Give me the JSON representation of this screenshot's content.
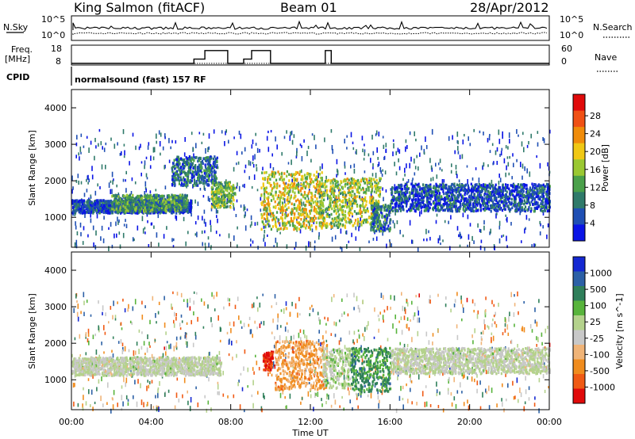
{
  "header": {
    "station": "King Salmon (fitACF)",
    "beam": "Beam 01",
    "date": "28/Apr/2012"
  },
  "noise_panel": {
    "left_label": "N.Sky",
    "right_label": "N.Search",
    "left_ticks": [
      "10^5",
      "10^0"
    ],
    "right_ticks": [
      "10^5",
      "10^0"
    ]
  },
  "freq_panel": {
    "left_label_line1": "Freq.",
    "left_label_line2": "[MHz]",
    "right_label": "Nave",
    "left_ticks": [
      "18",
      "8"
    ],
    "right_ticks": [
      "60",
      "0"
    ],
    "freq_steps": [
      {
        "start": 0.0,
        "end": 6.15,
        "level": 8
      },
      {
        "start": 6.15,
        "end": 6.7,
        "level": 11
      },
      {
        "start": 6.7,
        "end": 7.85,
        "level": 17
      },
      {
        "start": 7.85,
        "end": 8.65,
        "level": 8
      },
      {
        "start": 8.65,
        "end": 9.05,
        "level": 11
      },
      {
        "start": 9.05,
        "end": 10.0,
        "level": 17
      },
      {
        "start": 10.0,
        "end": 12.75,
        "level": 8
      },
      {
        "start": 12.75,
        "end": 13.05,
        "level": 17
      },
      {
        "start": 13.05,
        "end": 24.0,
        "level": 8
      }
    ]
  },
  "cpid": {
    "label": "CPID",
    "text": "normalsound (fast) 157 RF"
  },
  "chart_data": [
    {
      "type": "heatmap",
      "title": "",
      "quantity": "Power",
      "xlabel": "",
      "ylabel": "Slant Range [km]",
      "xlim": [
        0,
        24
      ],
      "ylim": [
        180,
        4500
      ],
      "yticks": [
        1000,
        2000,
        3000,
        4000
      ],
      "colorbar_label": "Power [dB]",
      "colorbar_ticks": [
        "4",
        "8",
        "12",
        "16",
        "20",
        "24",
        "28"
      ],
      "colorbar_range": [
        0,
        30
      ],
      "colorbar_colors": [
        "#0a14e6",
        "#1f4fb4",
        "#2f7a6a",
        "#4aa04a",
        "#9ac832",
        "#f0c814",
        "#f08c0a",
        "#f05014",
        "#e00a0a"
      ],
      "regions": [
        {
          "t0": 0.0,
          "t1": 6.0,
          "r0": 1150,
          "r1": 1500,
          "value": 5
        },
        {
          "t0": 2.0,
          "t1": 5.8,
          "r0": 1200,
          "r1": 1650,
          "value": 10
        },
        {
          "t0": 5.0,
          "t1": 7.3,
          "r0": 1900,
          "r1": 2700,
          "value": 7
        },
        {
          "t0": 7.0,
          "t1": 8.2,
          "r0": 1300,
          "r1": 2000,
          "value": 14
        },
        {
          "t0": 9.5,
          "t1": 12.6,
          "r0": 700,
          "r1": 2300,
          "value": 17
        },
        {
          "t0": 12.4,
          "t1": 15.5,
          "r0": 750,
          "r1": 2100,
          "value": 15
        },
        {
          "t0": 15.0,
          "t1": 16.0,
          "r0": 650,
          "r1": 1400,
          "value": 8
        },
        {
          "t0": 16.0,
          "t1": 24.0,
          "r0": 1200,
          "r1": 1950,
          "value": 5
        }
      ]
    },
    {
      "type": "heatmap",
      "title": "",
      "quantity": "Velocity",
      "xlabel": "Time UT",
      "ylabel": "Slant Range [km]",
      "xlim": [
        0,
        24
      ],
      "ylim": [
        180,
        4500
      ],
      "xticks": [
        "00:00",
        "04:00",
        "08:00",
        "12:00",
        "16:00",
        "20:00",
        "00:00"
      ],
      "yticks": [
        1000,
        2000,
        3000,
        4000
      ],
      "colorbar_label": "Velocity [m s^-1]",
      "colorbar_ticks": [
        "1000",
        "500",
        "100",
        "25",
        "-25",
        "-100",
        "-500",
        "-1000"
      ],
      "colorbar_range": [
        -1200,
        1200
      ],
      "colorbar_colors": [
        "#1428d2",
        "#2c60a6",
        "#2f7f5a",
        "#58b43c",
        "#b4d28c",
        "#c8c8c8",
        "#f0b478",
        "#f08c1e",
        "#f05a14",
        "#e00a0a"
      ],
      "regions": [
        {
          "t0": 0.0,
          "t1": 7.5,
          "r0": 1150,
          "r1": 1650,
          "value": 0
        },
        {
          "t0": 9.6,
          "t1": 10.1,
          "r0": 1300,
          "r1": 1800,
          "value": -1000
        },
        {
          "t0": 10.2,
          "t1": 12.8,
          "r0": 750,
          "r1": 2100,
          "value": -500
        },
        {
          "t0": 12.6,
          "t1": 14.0,
          "r0": 800,
          "r1": 1900,
          "value": 100
        },
        {
          "t0": 14.0,
          "t1": 16.0,
          "r0": 700,
          "r1": 1900,
          "value": 500
        },
        {
          "t0": 16.0,
          "t1": 24.0,
          "r0": 1200,
          "r1": 1900,
          "value": 0
        }
      ]
    }
  ]
}
